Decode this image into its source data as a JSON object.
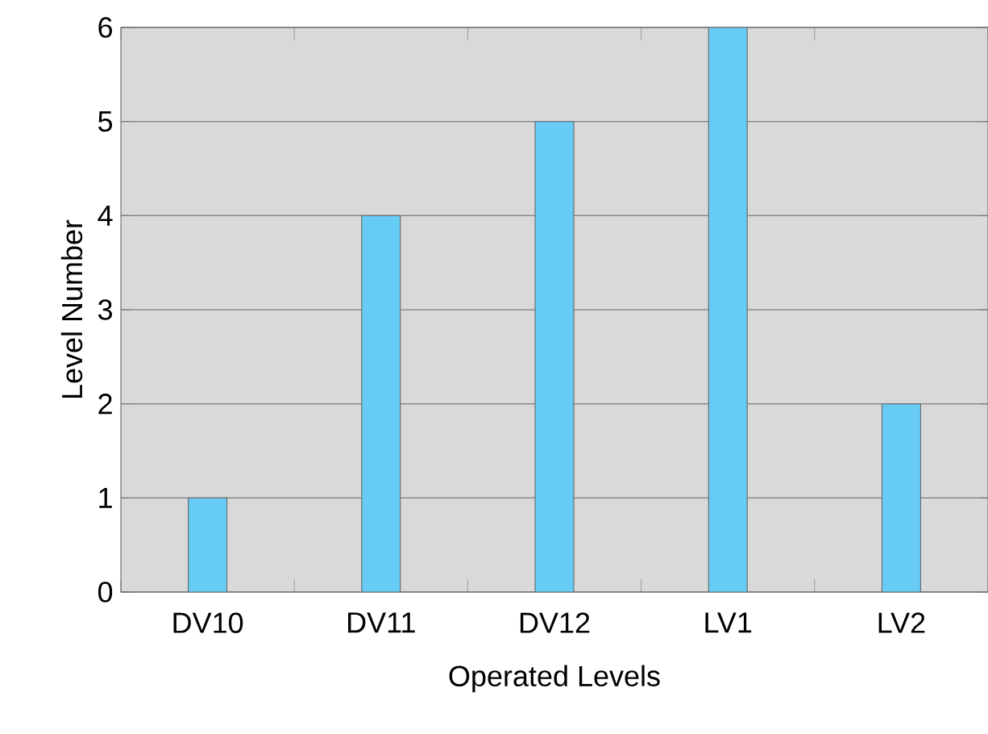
{
  "chart_data": {
    "type": "bar",
    "xlabel": "Operated Levels",
    "ylabel": "Level Number",
    "categories": [
      "DV10",
      "DV11",
      "DV12",
      "LV1",
      "LV2"
    ],
    "values": [
      1,
      4,
      5,
      6,
      2
    ],
    "color": "#66ccf5",
    "ylim": [
      0,
      6
    ],
    "yticks": [
      0,
      1,
      2,
      3,
      4,
      5,
      6
    ],
    "grid": "y"
  }
}
